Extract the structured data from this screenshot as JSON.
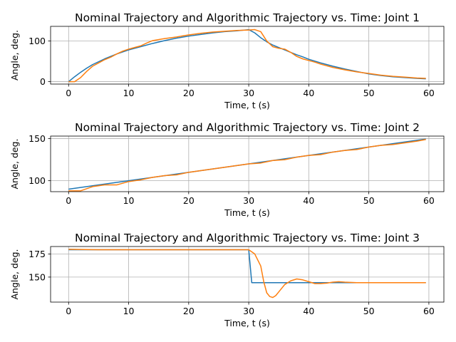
{
  "chart_data": [
    {
      "type": "line",
      "title": "Nominal Trajectory and Algorithmic Trajectory vs. Time: Joint 1",
      "xlabel": "Time, t (s)",
      "ylabel": "Angle, deg.",
      "xlim": [
        -3,
        62.5
      ],
      "ylim": [
        -6,
        136
      ],
      "xticks": [
        0,
        10,
        20,
        30,
        40,
        50,
        60
      ],
      "yticks": [
        0,
        100
      ],
      "grid": true,
      "series": [
        {
          "color": "#1f77b4",
          "x": [
            0,
            1,
            2,
            3,
            4,
            5,
            6,
            7,
            8,
            9,
            10,
            12,
            14,
            16,
            18,
            20,
            22,
            24,
            26,
            28,
            30,
            31,
            32,
            33,
            34,
            35,
            36,
            37,
            38,
            39,
            40,
            42,
            44,
            46,
            48,
            50,
            52,
            54,
            56,
            58,
            59.5
          ],
          "y": [
            0,
            12,
            23,
            33,
            42,
            49,
            56,
            62,
            68,
            73,
            78,
            86,
            94,
            101,
            107,
            112,
            116,
            120,
            123,
            125,
            128,
            120,
            108,
            98,
            90,
            84,
            78,
            72,
            66,
            61,
            55,
            46,
            38,
            31,
            25,
            19,
            15,
            12,
            10,
            8,
            7
          ]
        },
        {
          "color": "#ff7f0e",
          "x": [
            0,
            1,
            2,
            3,
            4,
            5,
            6,
            7,
            8,
            9,
            10,
            11,
            12,
            13,
            14,
            16,
            18,
            20,
            22,
            24,
            26,
            28,
            30,
            31,
            32,
            33,
            34,
            35,
            36,
            37,
            38,
            39,
            40,
            41,
            42,
            44,
            46,
            48,
            50,
            52,
            54,
            56,
            58,
            59.5
          ],
          "y": [
            0,
            0,
            10,
            25,
            38,
            46,
            54,
            60,
            68,
            75,
            80,
            84,
            88,
            95,
            101,
            106,
            110,
            115,
            119,
            122,
            124,
            126,
            127,
            128,
            123,
            100,
            86,
            82,
            80,
            72,
            62,
            56,
            52,
            48,
            43,
            35,
            29,
            24,
            20,
            16,
            13,
            11,
            9,
            8
          ]
        }
      ]
    },
    {
      "type": "line",
      "title": "Nominal Trajectory and Algorithmic Trajectory vs. Time: Joint 2",
      "xlabel": "Time, t (s)",
      "ylabel": "Angle, deg.",
      "xlim": [
        -3,
        62.5
      ],
      "ylim": [
        87,
        153
      ],
      "xticks": [
        0,
        10,
        20,
        30,
        40,
        50,
        60
      ],
      "yticks": [
        100,
        150
      ],
      "grid": true,
      "series": [
        {
          "color": "#1f77b4",
          "x": [
            0,
            10,
            20,
            30,
            40,
            50,
            59.5
          ],
          "y": [
            90,
            100,
            110,
            120,
            130,
            140,
            149.5
          ]
        },
        {
          "color": "#ff7f0e",
          "x": [
            0,
            2,
            4,
            6,
            8,
            10,
            12,
            14,
            16,
            18,
            20,
            22,
            24,
            26,
            28,
            30,
            32,
            34,
            36,
            38,
            40,
            42,
            44,
            46,
            48,
            50,
            52,
            54,
            56,
            58,
            59.5
          ],
          "y": [
            88,
            88,
            93,
            95,
            95,
            99,
            101,
            104,
            106,
            107,
            110,
            112,
            114,
            116,
            118,
            120,
            121,
            124,
            125,
            128,
            130,
            131,
            134,
            136,
            137,
            140,
            142,
            143,
            145,
            147,
            149
          ]
        }
      ]
    },
    {
      "type": "line",
      "title": "Nominal Trajectory and Algorithmic Trajectory vs. Time: Joint 3",
      "xlabel": "Time, t (s)",
      "ylabel": "Angle, deg.",
      "xlim": [
        -3,
        62.5
      ],
      "ylim": [
        123,
        183
      ],
      "xticks": [
        0,
        10,
        20,
        30,
        40,
        50,
        60
      ],
      "yticks": [
        150,
        175
      ],
      "grid": true,
      "series": [
        {
          "color": "#1f77b4",
          "x": [
            0,
            30,
            30.5,
            59.5
          ],
          "y": [
            179.5,
            179.5,
            144,
            144
          ]
        },
        {
          "color": "#ff7f0e",
          "x": [
            0,
            5,
            10,
            20,
            30,
            31,
            32,
            32.5,
            33,
            33.5,
            34,
            34.5,
            35,
            36,
            37,
            38,
            39,
            40,
            41,
            42,
            43,
            44,
            45,
            46,
            48,
            50,
            55,
            59.5
          ],
          "y": [
            180,
            179.5,
            179.5,
            179.5,
            179.5,
            175,
            162,
            145,
            133,
            129,
            128,
            130,
            134,
            142,
            146,
            148,
            147,
            145,
            143,
            143,
            143.5,
            144.5,
            145,
            144.5,
            144,
            144,
            144,
            144
          ]
        }
      ]
    }
  ]
}
